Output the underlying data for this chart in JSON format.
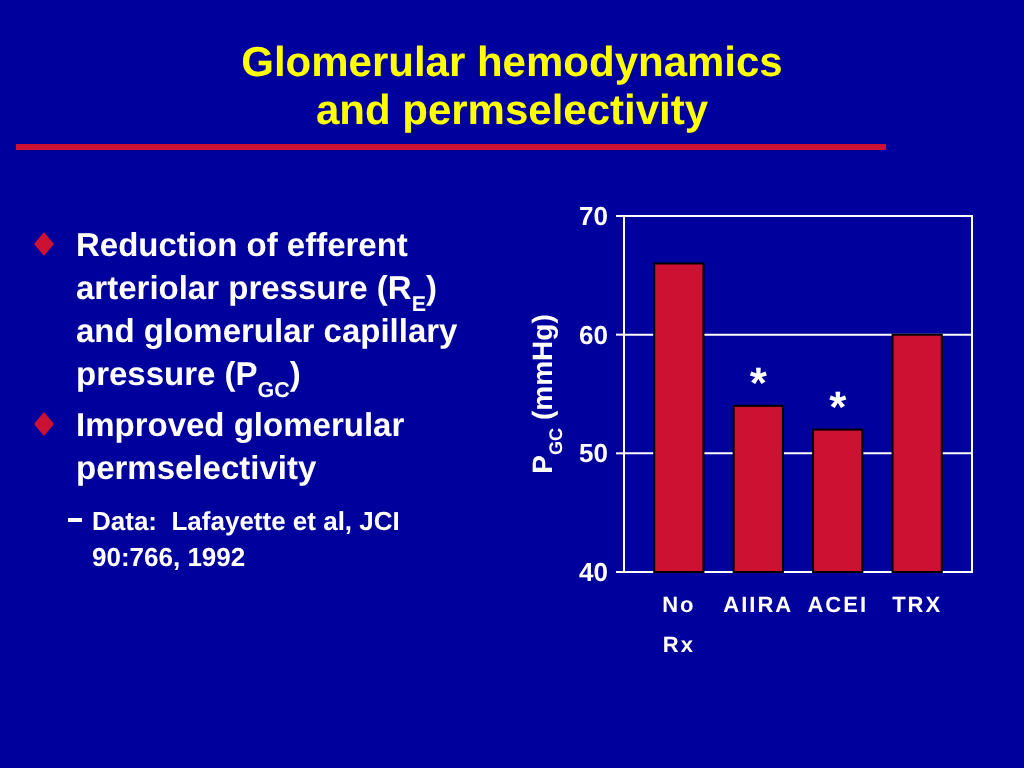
{
  "chart_data": {
    "type": "bar",
    "title": "Glomerular hemodynamics\nand permselectivity",
    "categories": [
      "No\nRx",
      "AIIRA",
      "ACEI",
      "TRX"
    ],
    "values": [
      66,
      54,
      52,
      60
    ],
    "color": "#cc1133",
    "ylabel": "P$_{GC}$ (mmHg)",
    "ylim": [
      40,
      70
    ],
    "yticks": [
      40,
      50,
      60,
      70
    ],
    "grid": "y",
    "annotations": [
      "Reduction of efferent arteriolar pressure (R$_{E}$) and glomerular capillary pressure (P$_{GC}$)",
      "Improved glomerular permselectivity",
      "Data:  Lafayette et al, JCI 90:766, 1992",
      {
        "text": "*",
        "x": "AIIRA",
        "y": 54
      },
      {
        "text": "*",
        "x": "ACEI",
        "y": 52
      }
    ]
  }
}
